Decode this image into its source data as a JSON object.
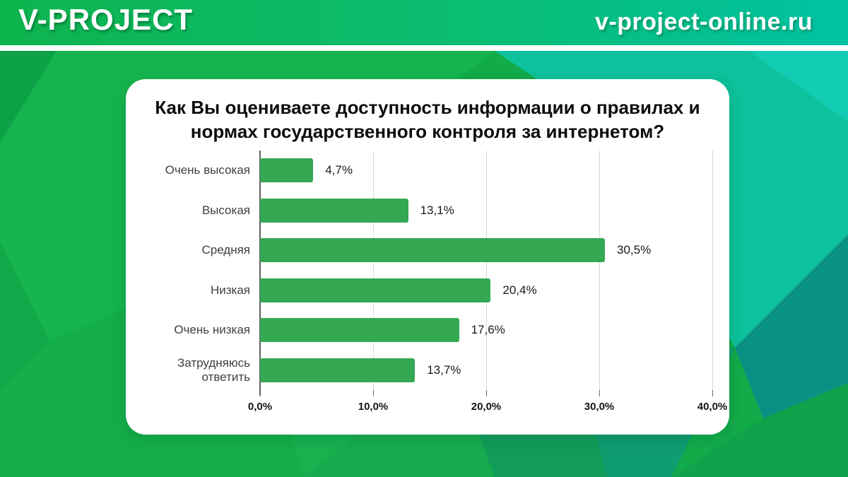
{
  "header": {
    "logo": "V-PROJECT",
    "site": "v-project-online.ru"
  },
  "colors": {
    "header_gradient_left": "#0eb44d",
    "header_gradient_right": "#00c2a3",
    "bar": "#34a853",
    "card_bg": "#ffffff",
    "bg_green": "#12ab4a",
    "bg_teal": "#0dc29c",
    "bg_dark_teal": "#0b9184"
  },
  "chart_data": {
    "type": "bar",
    "orientation": "horizontal",
    "title": "Как Вы оцениваете доступность информации о правилах и нормах государственного контроля за интернетом?",
    "title_line1": "Как Вы оцениваете доступность информации о правилах и",
    "title_line2": "нормах государственного контроля за интернетом?",
    "categories": [
      "Очень высокая",
      "Высокая",
      "Средняя",
      "Низкая",
      "Очень низкая",
      "Затрудняюсь ответить"
    ],
    "values": [
      4.7,
      13.1,
      30.5,
      20.4,
      17.6,
      13.7
    ],
    "value_labels": [
      "4,7%",
      "13,1%",
      "30,5%",
      "20,4%",
      "17,6%",
      "13,7%"
    ],
    "x_ticks": [
      "0,0%",
      "10,0%",
      "20,0%",
      "30,0%",
      "40,0%"
    ],
    "xlim": [
      0,
      40
    ],
    "grid": true,
    "legend_position": "none",
    "bar_color": "#34a853"
  }
}
